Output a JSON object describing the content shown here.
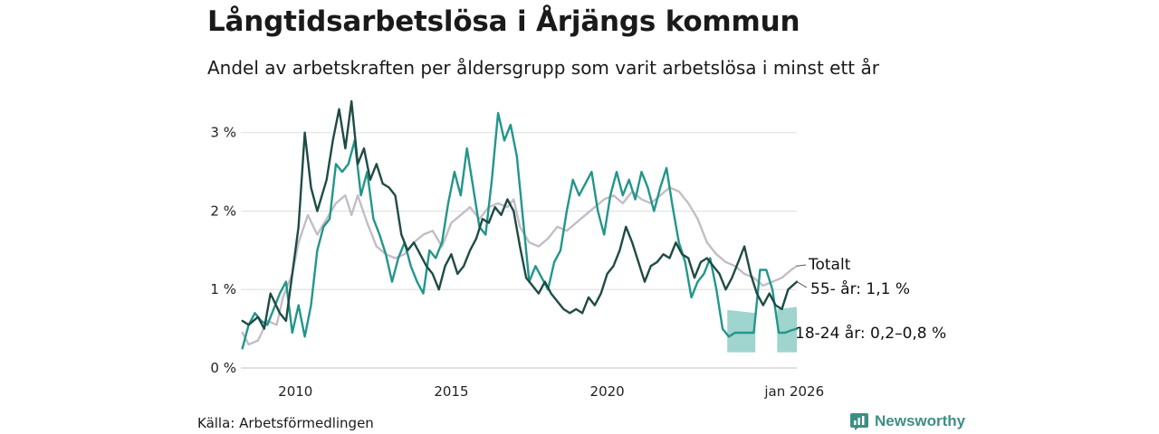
{
  "chart_data": {
    "type": "line",
    "title": "Långtidsarbetslösa i Årjängs kommun",
    "subtitle": "Andel av arbetskraften per åldersgrupp som varit arbetslösa i minst ett år",
    "source": "Källa: Arbetsförmedlingen",
    "brand": "Newsworthy",
    "ylim": [
      0,
      3.4
    ],
    "xlim": [
      2008.25,
      2026.08
    ],
    "yticks": [
      {
        "value": 0,
        "label": "0 %"
      },
      {
        "value": 1,
        "label": "1 %"
      },
      {
        "value": 2,
        "label": "2 %"
      },
      {
        "value": 3,
        "label": "3 %"
      }
    ],
    "xticks": [
      {
        "value": 2010,
        "label": "2010"
      },
      {
        "value": 2015,
        "label": "2015"
      },
      {
        "value": 2020,
        "label": "2020"
      },
      {
        "value": 2026,
        "label": "jan 2026"
      }
    ],
    "series": [
      {
        "name": "Totalt",
        "label": "Totalt",
        "color": "#c3bdc7",
        "points": [
          [
            2008.3,
            0.45
          ],
          [
            2008.5,
            0.3
          ],
          [
            2008.8,
            0.35
          ],
          [
            2009.1,
            0.6
          ],
          [
            2009.4,
            0.55
          ],
          [
            2009.6,
            0.9
          ],
          [
            2009.9,
            1.2
          ],
          [
            2010.1,
            1.6
          ],
          [
            2010.4,
            1.95
          ],
          [
            2010.7,
            1.7
          ],
          [
            2011.0,
            1.9
          ],
          [
            2011.3,
            2.1
          ],
          [
            2011.6,
            2.2
          ],
          [
            2011.8,
            1.95
          ],
          [
            2012.0,
            2.2
          ],
          [
            2012.3,
            1.85
          ],
          [
            2012.6,
            1.55
          ],
          [
            2012.9,
            1.45
          ],
          [
            2013.2,
            1.4
          ],
          [
            2013.5,
            1.45
          ],
          [
            2013.8,
            1.6
          ],
          [
            2014.1,
            1.7
          ],
          [
            2014.4,
            1.75
          ],
          [
            2014.7,
            1.55
          ],
          [
            2015.0,
            1.85
          ],
          [
            2015.3,
            1.95
          ],
          [
            2015.6,
            2.05
          ],
          [
            2015.9,
            1.9
          ],
          [
            2016.2,
            2.05
          ],
          [
            2016.5,
            2.1
          ],
          [
            2016.8,
            2.05
          ],
          [
            2017.0,
            2.15
          ],
          [
            2017.2,
            1.8
          ],
          [
            2017.5,
            1.6
          ],
          [
            2017.8,
            1.55
          ],
          [
            2018.1,
            1.65
          ],
          [
            2018.4,
            1.8
          ],
          [
            2018.7,
            1.75
          ],
          [
            2019.0,
            1.85
          ],
          [
            2019.3,
            1.95
          ],
          [
            2019.6,
            2.05
          ],
          [
            2019.9,
            2.15
          ],
          [
            2020.2,
            2.2
          ],
          [
            2020.5,
            2.1
          ],
          [
            2020.8,
            2.25
          ],
          [
            2021.1,
            2.15
          ],
          [
            2021.4,
            2.1
          ],
          [
            2021.7,
            2.2
          ],
          [
            2022.0,
            2.3
          ],
          [
            2022.3,
            2.25
          ],
          [
            2022.6,
            2.1
          ],
          [
            2022.9,
            1.9
          ],
          [
            2023.2,
            1.6
          ],
          [
            2023.5,
            1.45
          ],
          [
            2023.8,
            1.35
          ],
          [
            2024.1,
            1.3
          ],
          [
            2024.4,
            1.2
          ],
          [
            2024.7,
            1.15
          ],
          [
            2025.0,
            1.05
          ],
          [
            2025.3,
            1.1
          ],
          [
            2025.6,
            1.15
          ],
          [
            2025.9,
            1.25
          ],
          [
            2026.08,
            1.3
          ]
        ]
      },
      {
        "name": "55- år",
        "label": "55- år: 1,1 %",
        "color": "#1f4b45",
        "points": [
          [
            2008.3,
            0.6
          ],
          [
            2008.5,
            0.55
          ],
          [
            2008.8,
            0.65
          ],
          [
            2009.0,
            0.5
          ],
          [
            2009.2,
            0.95
          ],
          [
            2009.5,
            0.7
          ],
          [
            2009.7,
            0.6
          ],
          [
            2009.9,
            1.2
          ],
          [
            2010.1,
            1.8
          ],
          [
            2010.3,
            3.0
          ],
          [
            2010.5,
            2.3
          ],
          [
            2010.7,
            2.0
          ],
          [
            2011.0,
            2.4
          ],
          [
            2011.2,
            2.9
          ],
          [
            2011.4,
            3.3
          ],
          [
            2011.6,
            2.8
          ],
          [
            2011.8,
            3.4
          ],
          [
            2012.0,
            2.6
          ],
          [
            2012.2,
            2.8
          ],
          [
            2012.4,
            2.4
          ],
          [
            2012.6,
            2.6
          ],
          [
            2012.8,
            2.35
          ],
          [
            2013.0,
            2.3
          ],
          [
            2013.2,
            2.2
          ],
          [
            2013.4,
            1.7
          ],
          [
            2013.6,
            1.5
          ],
          [
            2013.8,
            1.6
          ],
          [
            2014.0,
            1.45
          ],
          [
            2014.2,
            1.3
          ],
          [
            2014.4,
            1.2
          ],
          [
            2014.6,
            1.0
          ],
          [
            2014.8,
            1.3
          ],
          [
            2015.0,
            1.45
          ],
          [
            2015.2,
            1.2
          ],
          [
            2015.4,
            1.3
          ],
          [
            2015.6,
            1.5
          ],
          [
            2015.8,
            1.65
          ],
          [
            2016.0,
            1.9
          ],
          [
            2016.2,
            1.85
          ],
          [
            2016.4,
            2.05
          ],
          [
            2016.6,
            1.95
          ],
          [
            2016.8,
            2.15
          ],
          [
            2017.0,
            2.0
          ],
          [
            2017.2,
            1.55
          ],
          [
            2017.4,
            1.15
          ],
          [
            2017.6,
            1.05
          ],
          [
            2017.8,
            0.95
          ],
          [
            2018.0,
            1.1
          ],
          [
            2018.2,
            0.95
          ],
          [
            2018.4,
            0.85
          ],
          [
            2018.6,
            0.75
          ],
          [
            2018.8,
            0.7
          ],
          [
            2019.0,
            0.75
          ],
          [
            2019.2,
            0.7
          ],
          [
            2019.4,
            0.9
          ],
          [
            2019.6,
            0.8
          ],
          [
            2019.8,
            0.95
          ],
          [
            2020.0,
            1.2
          ],
          [
            2020.2,
            1.3
          ],
          [
            2020.4,
            1.5
          ],
          [
            2020.6,
            1.8
          ],
          [
            2020.8,
            1.6
          ],
          [
            2021.0,
            1.35
          ],
          [
            2021.2,
            1.1
          ],
          [
            2021.4,
            1.3
          ],
          [
            2021.6,
            1.35
          ],
          [
            2021.8,
            1.45
          ],
          [
            2022.0,
            1.4
          ],
          [
            2022.2,
            1.6
          ],
          [
            2022.4,
            1.45
          ],
          [
            2022.6,
            1.4
          ],
          [
            2022.8,
            1.15
          ],
          [
            2023.0,
            1.35
          ],
          [
            2023.2,
            1.4
          ],
          [
            2023.4,
            1.3
          ],
          [
            2023.6,
            1.2
          ],
          [
            2023.8,
            1.0
          ],
          [
            2024.0,
            1.15
          ],
          [
            2024.2,
            1.35
          ],
          [
            2024.4,
            1.55
          ],
          [
            2024.6,
            1.2
          ],
          [
            2024.8,
            0.95
          ],
          [
            2025.0,
            0.8
          ],
          [
            2025.2,
            0.95
          ],
          [
            2025.4,
            0.8
          ],
          [
            2025.6,
            0.75
          ],
          [
            2025.8,
            1.0
          ],
          [
            2026.08,
            1.1
          ]
        ]
      },
      {
        "name": "18-24 år",
        "label": "18-24 år: 0,2–0,8 %",
        "color": "#22968a",
        "band_color": "#8fcdc5",
        "points": [
          [
            2008.3,
            0.25
          ],
          [
            2008.5,
            0.55
          ],
          [
            2008.7,
            0.7
          ],
          [
            2008.9,
            0.6
          ],
          [
            2009.1,
            0.55
          ],
          [
            2009.3,
            0.75
          ],
          [
            2009.5,
            0.95
          ],
          [
            2009.7,
            1.1
          ],
          [
            2009.9,
            0.45
          ],
          [
            2010.1,
            0.8
          ],
          [
            2010.3,
            0.4
          ],
          [
            2010.5,
            0.8
          ],
          [
            2010.7,
            1.5
          ],
          [
            2010.9,
            1.8
          ],
          [
            2011.1,
            1.9
          ],
          [
            2011.3,
            2.6
          ],
          [
            2011.5,
            2.5
          ],
          [
            2011.7,
            2.6
          ],
          [
            2011.9,
            2.9
          ],
          [
            2012.1,
            2.2
          ],
          [
            2012.3,
            2.5
          ],
          [
            2012.5,
            1.9
          ],
          [
            2012.7,
            1.7
          ],
          [
            2012.9,
            1.45
          ],
          [
            2013.1,
            1.1
          ],
          [
            2013.3,
            1.4
          ],
          [
            2013.5,
            1.6
          ],
          [
            2013.7,
            1.3
          ],
          [
            2013.9,
            1.1
          ],
          [
            2014.1,
            0.95
          ],
          [
            2014.3,
            1.5
          ],
          [
            2014.5,
            1.4
          ],
          [
            2014.7,
            1.6
          ],
          [
            2014.9,
            2.1
          ],
          [
            2015.1,
            2.5
          ],
          [
            2015.3,
            2.2
          ],
          [
            2015.5,
            2.8
          ],
          [
            2015.7,
            2.3
          ],
          [
            2015.9,
            1.8
          ],
          [
            2016.1,
            1.7
          ],
          [
            2016.3,
            2.4
          ],
          [
            2016.5,
            3.25
          ],
          [
            2016.7,
            2.9
          ],
          [
            2016.9,
            3.1
          ],
          [
            2017.1,
            2.7
          ],
          [
            2017.3,
            1.9
          ],
          [
            2017.5,
            1.1
          ],
          [
            2017.7,
            1.3
          ],
          [
            2017.9,
            1.15
          ],
          [
            2018.1,
            1.0
          ],
          [
            2018.3,
            1.35
          ],
          [
            2018.5,
            1.5
          ],
          [
            2018.7,
            2.0
          ],
          [
            2018.9,
            2.4
          ],
          [
            2019.1,
            2.2
          ],
          [
            2019.3,
            2.35
          ],
          [
            2019.5,
            2.5
          ],
          [
            2019.7,
            2.0
          ],
          [
            2019.9,
            1.7
          ],
          [
            2020.1,
            2.2
          ],
          [
            2020.3,
            2.5
          ],
          [
            2020.5,
            2.2
          ],
          [
            2020.7,
            2.4
          ],
          [
            2020.9,
            2.15
          ],
          [
            2021.1,
            2.5
          ],
          [
            2021.3,
            2.3
          ],
          [
            2021.5,
            2.0
          ],
          [
            2021.7,
            2.3
          ],
          [
            2021.9,
            2.55
          ],
          [
            2022.1,
            2.05
          ],
          [
            2022.3,
            1.6
          ],
          [
            2022.5,
            1.35
          ],
          [
            2022.7,
            0.9
          ],
          [
            2022.9,
            1.1
          ],
          [
            2023.1,
            1.2
          ],
          [
            2023.3,
            1.4
          ],
          [
            2023.5,
            1.0
          ],
          [
            2023.7,
            0.5
          ],
          [
            2023.9,
            0.4
          ],
          [
            2024.1,
            0.45
          ],
          [
            2024.3,
            0.45
          ],
          [
            2024.5,
            0.45
          ],
          [
            2024.7,
            0.45
          ],
          [
            2024.9,
            1.25
          ],
          [
            2025.1,
            1.25
          ],
          [
            2025.3,
            1.0
          ],
          [
            2025.5,
            0.45
          ],
          [
            2025.7,
            0.45
          ],
          [
            2025.9,
            0.48
          ],
          [
            2026.08,
            0.5
          ]
        ],
        "bands": [
          {
            "x": [
              2023.85,
              2024.75
            ],
            "lower_left": 0.2,
            "lower_right": 0.2,
            "upper_left": 0.74,
            "upper_right": 0.7
          },
          {
            "x": [
              2025.45,
              2026.08
            ],
            "lower_left": 0.2,
            "lower_right": 0.2,
            "upper_left": 0.75,
            "upper_right": 0.78
          }
        ]
      }
    ]
  }
}
